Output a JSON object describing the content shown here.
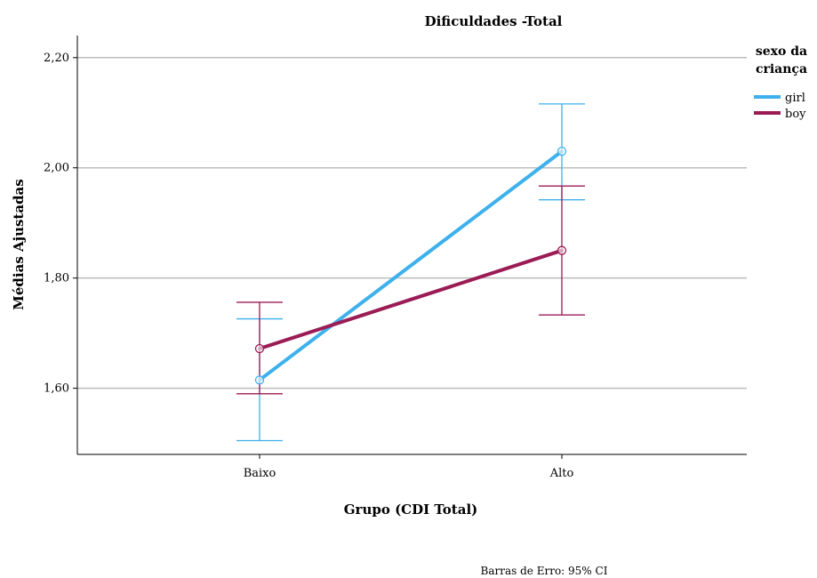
{
  "chart_data": {
    "type": "line",
    "title": "Dificuldades -Total",
    "xlabel": "Grupo (CDI Total)",
    "ylabel": "Médias Ajustadas",
    "categories": [
      "Baixo",
      "Alto"
    ],
    "ylim": [
      1.48,
      2.24
    ],
    "yticks": [
      {
        "value": 1.6,
        "label": "1,60"
      },
      {
        "value": 1.8,
        "label": "1,80"
      },
      {
        "value": 2.0,
        "label": "2,00"
      },
      {
        "value": 2.2,
        "label": "2,20"
      }
    ],
    "grid": "horizontal",
    "legend": {
      "title_line1": "sexo da",
      "title_line2": "criança",
      "placement": "right"
    },
    "series": [
      {
        "name": "girl",
        "color": "#3eb1ec",
        "values": [
          1.615,
          2.03
        ],
        "ci_low": [
          1.505,
          1.942
        ],
        "ci_high": [
          1.726,
          2.116
        ]
      },
      {
        "name": "boy",
        "color": "#9b1b55",
        "values": [
          1.672,
          1.85
        ],
        "ci_low": [
          1.59,
          1.733
        ],
        "ci_high": [
          1.756,
          1.967
        ]
      }
    ],
    "footnote": "Barras de Erro: 95% CI"
  }
}
